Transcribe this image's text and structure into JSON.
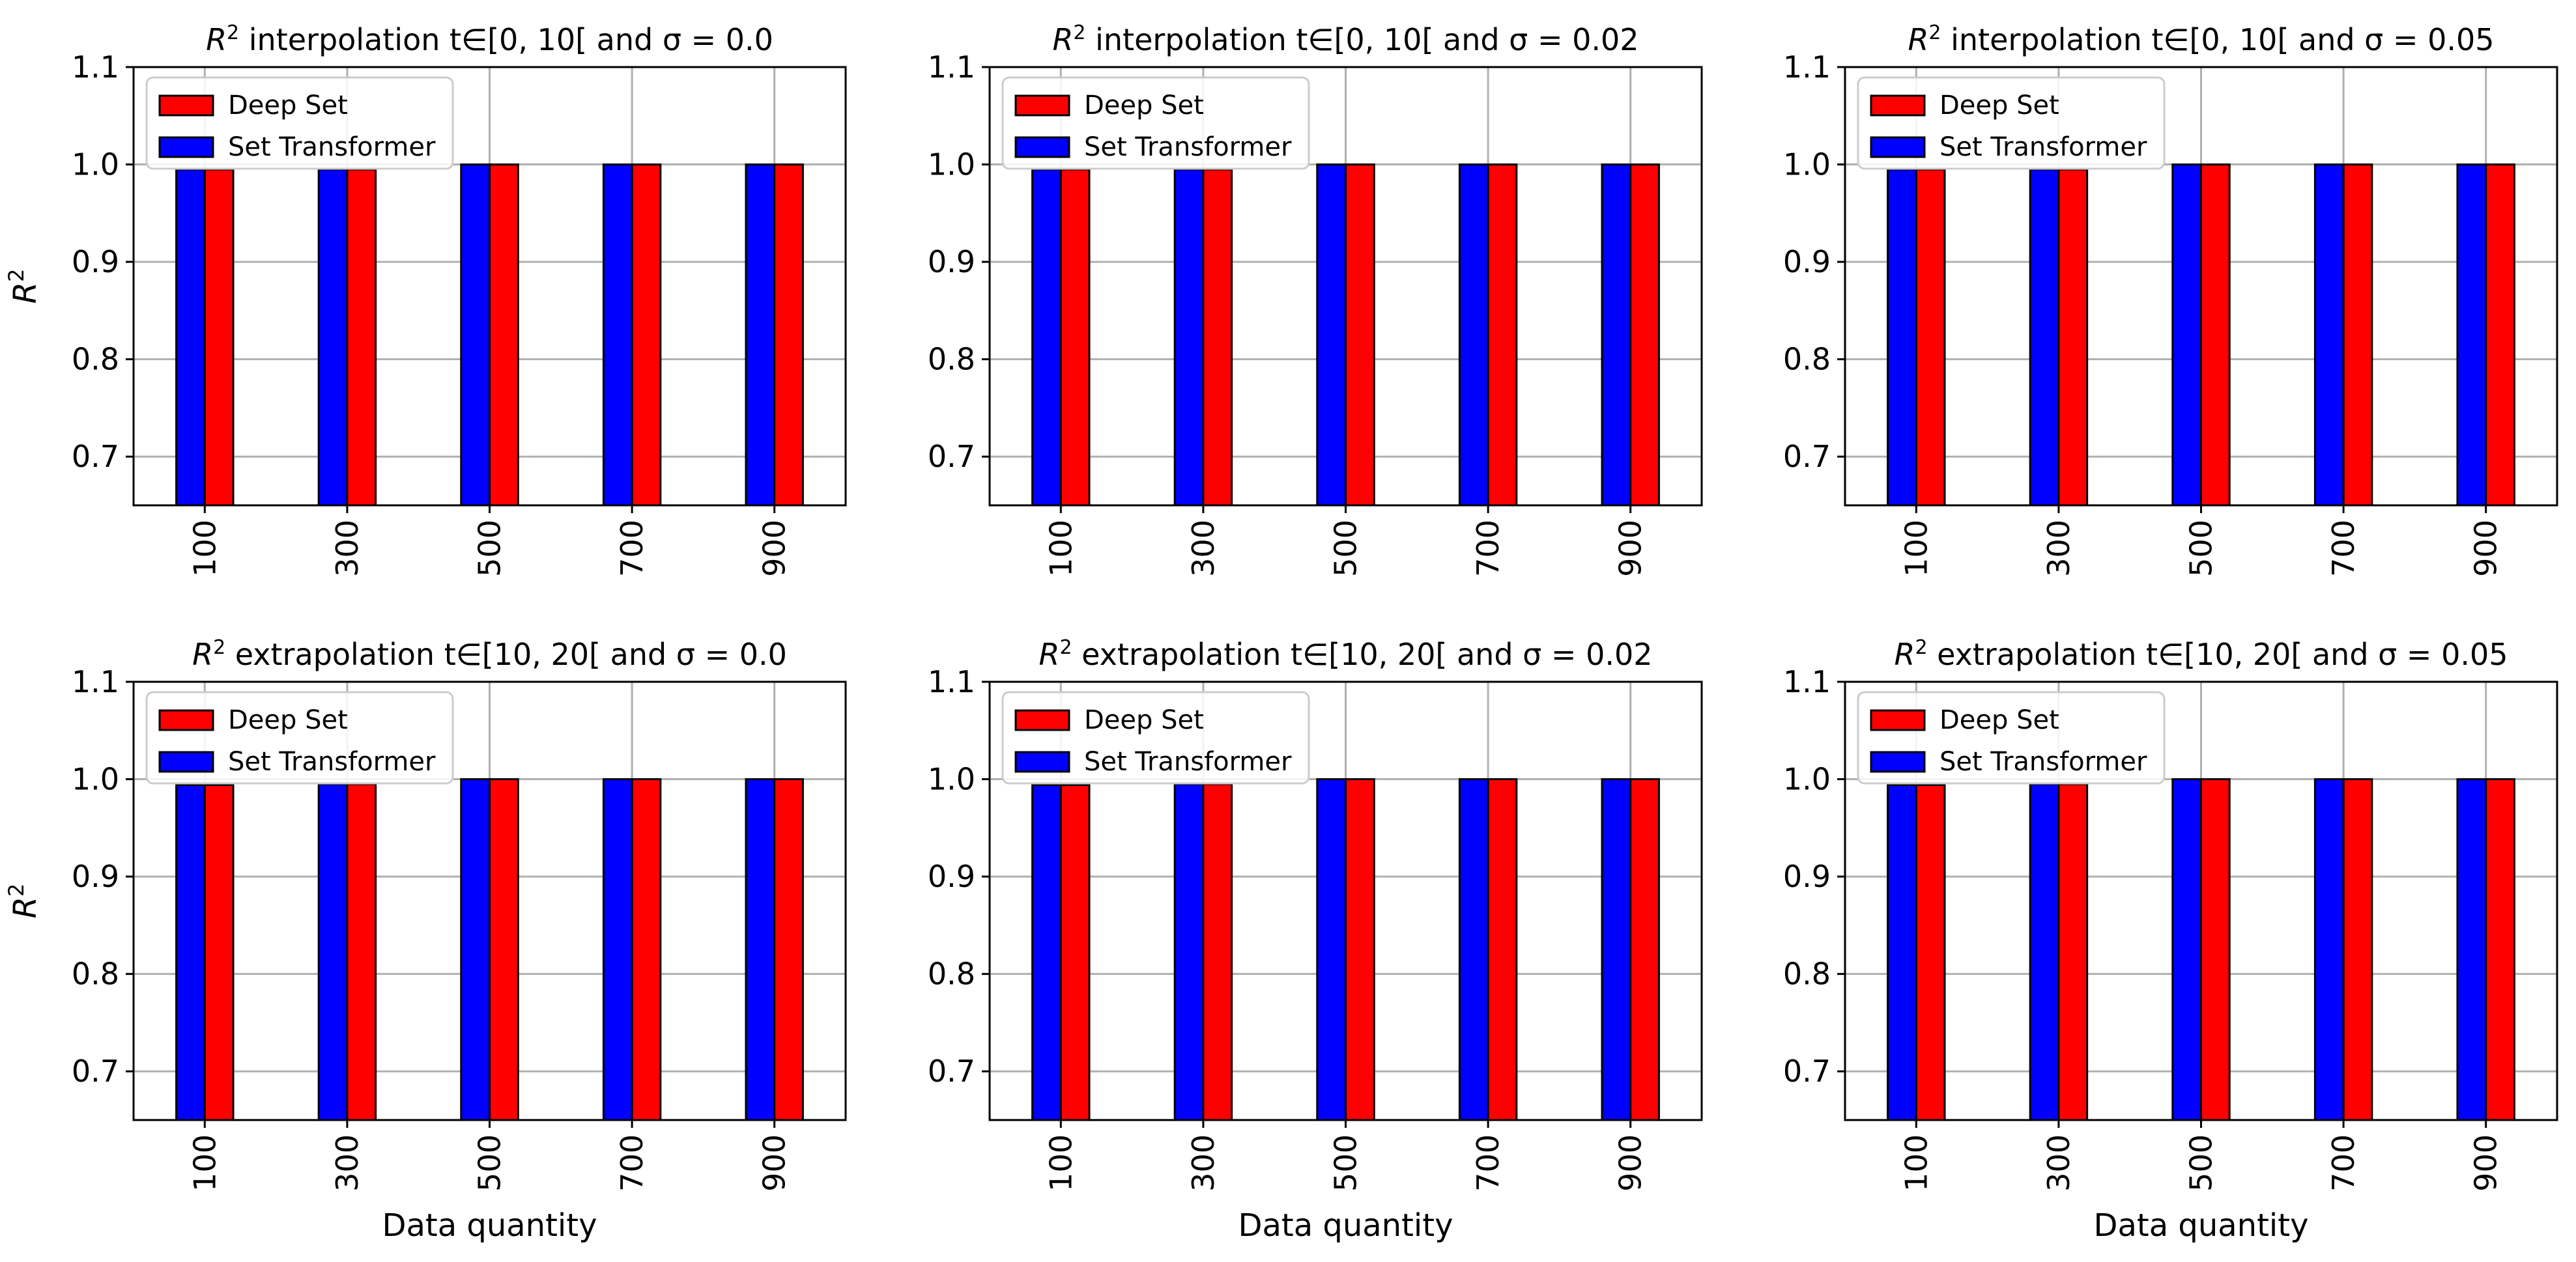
{
  "colors": {
    "deep_set": "#ff0000",
    "set_transformer": "#0000ff",
    "grid": "#b0b0b0"
  },
  "chart_data": [
    {
      "type": "bar",
      "title_prefix": "R",
      "title_sup": "2",
      "title_rest": " interpolation t∈[0, 10[ and σ = 0.0",
      "categories": [
        "100",
        "300",
        "500",
        "700",
        "900"
      ],
      "series": [
        {
          "name": "Set Transformer",
          "values": [
            0.995,
            0.995,
            1.0,
            1.0,
            1.0
          ]
        },
        {
          "name": "Deep Set",
          "values": [
            0.995,
            0.995,
            1.0,
            1.0,
            1.0
          ]
        }
      ],
      "legend_order": [
        "Deep Set",
        "Set Transformer"
      ],
      "ylim": [
        0.65,
        1.1
      ],
      "yticks": [
        "0.7",
        "0.8",
        "0.9",
        "1.0",
        "1.1"
      ],
      "ylabel_base": "R",
      "ylabel_sup": "2",
      "xlabel": "",
      "grid": true,
      "legend": "upper-left"
    },
    {
      "type": "bar",
      "title_prefix": "R",
      "title_sup": "2",
      "title_rest": " interpolation t∈[0, 10[ and σ = 0.02",
      "categories": [
        "100",
        "300",
        "500",
        "700",
        "900"
      ],
      "series": [
        {
          "name": "Set Transformer",
          "values": [
            0.995,
            0.995,
            1.0,
            1.0,
            1.0
          ]
        },
        {
          "name": "Deep Set",
          "values": [
            0.995,
            0.995,
            1.0,
            1.0,
            1.0
          ]
        }
      ],
      "legend_order": [
        "Deep Set",
        "Set Transformer"
      ],
      "ylim": [
        0.65,
        1.1
      ],
      "yticks": [
        "0.7",
        "0.8",
        "0.9",
        "1.0",
        "1.1"
      ],
      "ylabel_base": "",
      "ylabel_sup": "",
      "xlabel": "",
      "grid": true,
      "legend": "upper-left"
    },
    {
      "type": "bar",
      "title_prefix": "R",
      "title_sup": "2",
      "title_rest": " interpolation t∈[0, 10[ and σ = 0.05",
      "categories": [
        "100",
        "300",
        "500",
        "700",
        "900"
      ],
      "series": [
        {
          "name": "Set Transformer",
          "values": [
            0.995,
            0.995,
            1.0,
            1.0,
            1.0
          ]
        },
        {
          "name": "Deep Set",
          "values": [
            0.995,
            0.995,
            1.0,
            1.0,
            1.0
          ]
        }
      ],
      "legend_order": [
        "Deep Set",
        "Set Transformer"
      ],
      "ylim": [
        0.65,
        1.1
      ],
      "yticks": [
        "0.7",
        "0.8",
        "0.9",
        "1.0",
        "1.1"
      ],
      "ylabel_base": "",
      "ylabel_sup": "",
      "xlabel": "",
      "grid": true,
      "legend": "upper-left"
    },
    {
      "type": "bar",
      "title_prefix": "R",
      "title_sup": "2",
      "title_rest": " extrapolation t∈[10, 20[ and σ = 0.0",
      "categories": [
        "100",
        "300",
        "500",
        "700",
        "900"
      ],
      "series": [
        {
          "name": "Set Transformer",
          "values": [
            0.994,
            0.995,
            1.0,
            1.0,
            1.0
          ]
        },
        {
          "name": "Deep Set",
          "values": [
            0.994,
            0.995,
            1.0,
            1.0,
            1.0
          ]
        }
      ],
      "legend_order": [
        "Deep Set",
        "Set Transformer"
      ],
      "ylim": [
        0.65,
        1.1
      ],
      "yticks": [
        "0.7",
        "0.8",
        "0.9",
        "1.0",
        "1.1"
      ],
      "ylabel_base": "R",
      "ylabel_sup": "2",
      "xlabel": "Data quantity",
      "grid": true,
      "legend": "upper-left"
    },
    {
      "type": "bar",
      "title_prefix": "R",
      "title_sup": "2",
      "title_rest": " extrapolation t∈[10, 20[ and σ = 0.02",
      "categories": [
        "100",
        "300",
        "500",
        "700",
        "900"
      ],
      "series": [
        {
          "name": "Set Transformer",
          "values": [
            0.994,
            0.995,
            1.0,
            1.0,
            1.0
          ]
        },
        {
          "name": "Deep Set",
          "values": [
            0.994,
            0.995,
            1.0,
            1.0,
            1.0
          ]
        }
      ],
      "legend_order": [
        "Deep Set",
        "Set Transformer"
      ],
      "ylim": [
        0.65,
        1.1
      ],
      "yticks": [
        "0.7",
        "0.8",
        "0.9",
        "1.0",
        "1.1"
      ],
      "ylabel_base": "",
      "ylabel_sup": "",
      "xlabel": "Data quantity",
      "grid": true,
      "legend": "upper-left"
    },
    {
      "type": "bar",
      "title_prefix": "R",
      "title_sup": "2",
      "title_rest": " extrapolation t∈[10, 20[ and σ = 0.05",
      "categories": [
        "100",
        "300",
        "500",
        "700",
        "900"
      ],
      "series": [
        {
          "name": "Set Transformer",
          "values": [
            0.994,
            0.995,
            1.0,
            1.0,
            1.0
          ]
        },
        {
          "name": "Deep Set",
          "values": [
            0.994,
            0.995,
            1.0,
            1.0,
            1.0
          ]
        }
      ],
      "legend_order": [
        "Deep Set",
        "Set Transformer"
      ],
      "ylim": [
        0.65,
        1.1
      ],
      "yticks": [
        "0.7",
        "0.8",
        "0.9",
        "1.0",
        "1.1"
      ],
      "ylabel_base": "",
      "ylabel_sup": "",
      "xlabel": "Data quantity",
      "grid": true,
      "legend": "upper-left"
    }
  ]
}
